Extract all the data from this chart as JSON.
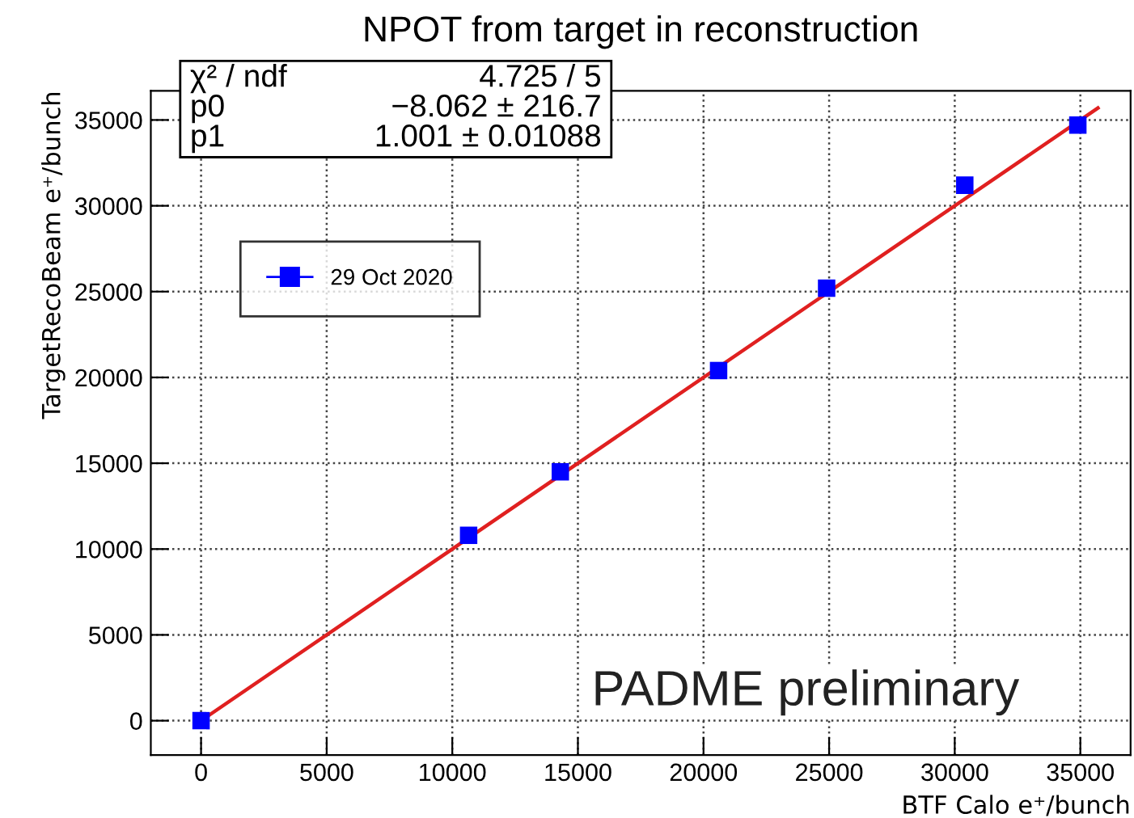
{
  "chart_data": {
    "type": "scatter",
    "title": "NPOT from target in reconstruction",
    "xlabel": "BTF Calo e⁺/bunch",
    "ylabel": "TargetRecoBeam e⁺/bunch",
    "xlim": [
      -2000,
      37000
    ],
    "ylim": [
      -2000,
      36700
    ],
    "xticks": [
      0,
      5000,
      10000,
      15000,
      20000,
      25000,
      30000,
      35000
    ],
    "yticks": [
      0,
      5000,
      10000,
      15000,
      20000,
      25000,
      30000,
      35000
    ],
    "grid": true,
    "legend": "top left",
    "series": [
      {
        "name": "29 Oct 2020",
        "marker": "square",
        "color": "#0000ff",
        "x": [
          0,
          10650,
          14300,
          20600,
          24900,
          30400,
          34900
        ],
        "values": [
          0,
          10800,
          14500,
          20400,
          25200,
          31200,
          34700
        ]
      },
      {
        "type": "line",
        "marker": "none",
        "line_style": "solid",
        "color": "#e02020",
        "x": [
          0,
          35700
        ],
        "values": [
          0,
          35700
        ]
      }
    ],
    "annotations": [
      "χ² / ndf",
      "4.725 / 5",
      "p0",
      "−8.062 ± 216.7",
      "p1",
      "1.001 ± 0.01088",
      "PADME preliminary"
    ]
  }
}
